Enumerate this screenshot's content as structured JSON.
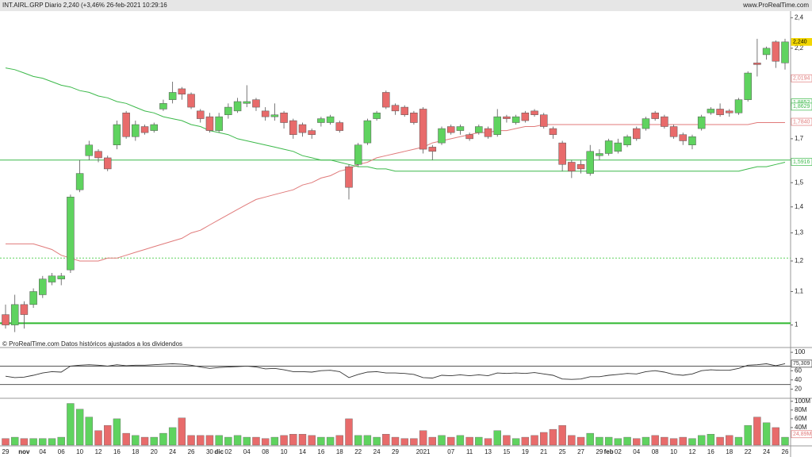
{
  "header": {
    "title": "INT.AIRL.GRP Diario 2,240 (+3,46% 26-feb-2021 10:29:16",
    "source": "www.ProRealTime.com"
  },
  "footer_note": "© ProRealTime.com  Datos históricos ajustados a los dividendos",
  "chart_data": [
    {
      "type": "candlestick",
      "categories": [
        "29",
        null,
        "nov",
        null,
        "04",
        null,
        "06",
        null,
        "10",
        null,
        "12",
        null,
        "16",
        null,
        "18",
        null,
        "20",
        null,
        "24",
        null,
        "26",
        null,
        "30",
        "dic",
        "02",
        null,
        "04",
        null,
        "08",
        null,
        "10",
        null,
        "14",
        null,
        "16",
        null,
        "18",
        null,
        "22",
        null,
        "24",
        null,
        "29",
        null,
        null,
        "2021",
        null,
        null,
        "07",
        null,
        "11",
        null,
        "13",
        null,
        "15",
        null,
        "19",
        null,
        "21",
        null,
        "25",
        null,
        "27",
        null,
        "29",
        "feb",
        "02",
        null,
        "04",
        null,
        "08",
        null,
        "10",
        null,
        "12",
        null,
        "16",
        null,
        "18",
        null,
        "22",
        null,
        "24",
        null,
        "26"
      ],
      "open": [
        1.03,
        1.0,
        1.06,
        1.06,
        1.09,
        1.13,
        1.14,
        1.17,
        1.47,
        1.62,
        1.64,
        1.61,
        1.67,
        1.83,
        1.71,
        1.76,
        1.74,
        1.85,
        1.9,
        1.96,
        1.93,
        1.84,
        1.81,
        1.74,
        1.82,
        1.84,
        1.88,
        1.9,
        1.84,
        1.81,
        1.83,
        1.79,
        1.77,
        1.74,
        1.78,
        1.78,
        1.78,
        1.57,
        1.58,
        1.68,
        1.8,
        1.94,
        1.87,
        1.86,
        1.83,
        1.85,
        1.66,
        1.68,
        1.76,
        1.74,
        1.72,
        1.73,
        1.75,
        1.72,
        1.81,
        1.78,
        1.83,
        1.84,
        1.82,
        1.75,
        1.68,
        1.59,
        1.58,
        1.54,
        1.62,
        1.63,
        1.64,
        1.67,
        1.75,
        1.75,
        1.83,
        1.81,
        1.76,
        1.72,
        1.67,
        1.75,
        1.83,
        1.85,
        1.84,
        1.83,
        1.9,
        2.11,
        2.16,
        2.24,
        2.11
      ],
      "high": [
        1.06,
        1.09,
        1.07,
        1.11,
        1.15,
        1.16,
        1.16,
        1.45,
        1.6,
        1.69,
        1.65,
        1.62,
        1.79,
        1.84,
        1.79,
        1.77,
        1.78,
        1.9,
        2.0,
        1.97,
        1.94,
        1.85,
        1.83,
        1.83,
        1.88,
        1.91,
        1.98,
        1.91,
        1.86,
        1.88,
        1.84,
        1.8,
        1.78,
        1.75,
        1.81,
        1.82,
        1.79,
        1.58,
        1.68,
        1.8,
        1.84,
        1.95,
        1.88,
        1.87,
        1.84,
        1.86,
        1.67,
        1.76,
        1.77,
        1.77,
        1.73,
        1.77,
        1.76,
        1.85,
        1.82,
        1.82,
        1.84,
        1.85,
        1.83,
        1.76,
        1.69,
        1.6,
        1.6,
        1.67,
        1.65,
        1.7,
        1.7,
        1.72,
        1.76,
        1.81,
        1.84,
        1.82,
        1.77,
        1.73,
        1.72,
        1.82,
        1.86,
        1.88,
        1.85,
        1.91,
        2.06,
        2.26,
        2.21,
        2.25,
        2.26
      ],
      "low": [
        0.99,
        0.98,
        0.99,
        1.05,
        1.08,
        1.12,
        1.12,
        1.16,
        1.46,
        1.6,
        1.59,
        1.55,
        1.65,
        1.7,
        1.69,
        1.72,
        1.73,
        1.84,
        1.88,
        1.9,
        1.85,
        1.78,
        1.73,
        1.73,
        1.8,
        1.83,
        1.86,
        1.84,
        1.79,
        1.79,
        1.75,
        1.7,
        1.71,
        1.7,
        1.76,
        1.77,
        1.73,
        1.43,
        1.57,
        1.67,
        1.79,
        1.85,
        1.82,
        1.81,
        1.77,
        1.63,
        1.6,
        1.67,
        1.72,
        1.72,
        1.69,
        1.72,
        1.7,
        1.71,
        1.78,
        1.77,
        1.78,
        1.81,
        1.75,
        1.7,
        1.55,
        1.52,
        1.54,
        1.53,
        1.6,
        1.62,
        1.63,
        1.66,
        1.69,
        1.74,
        1.79,
        1.75,
        1.7,
        1.67,
        1.65,
        1.74,
        1.82,
        1.81,
        1.81,
        1.82,
        1.89,
        2.03,
        2.13,
        2.08,
        2.07
      ],
      "close": [
        1.0,
        1.06,
        1.03,
        1.1,
        1.14,
        1.15,
        1.15,
        1.44,
        1.54,
        1.67,
        1.61,
        1.56,
        1.77,
        1.71,
        1.77,
        1.73,
        1.77,
        1.88,
        1.94,
        1.93,
        1.86,
        1.8,
        1.74,
        1.81,
        1.86,
        1.89,
        1.89,
        1.86,
        1.81,
        1.82,
        1.78,
        1.72,
        1.73,
        1.72,
        1.8,
        1.81,
        1.74,
        1.48,
        1.67,
        1.79,
        1.83,
        1.86,
        1.84,
        1.82,
        1.78,
        1.65,
        1.64,
        1.75,
        1.73,
        1.76,
        1.7,
        1.76,
        1.71,
        1.81,
        1.8,
        1.81,
        1.79,
        1.82,
        1.76,
        1.72,
        1.58,
        1.55,
        1.56,
        1.64,
        1.63,
        1.69,
        1.68,
        1.71,
        1.7,
        1.8,
        1.8,
        1.76,
        1.71,
        1.69,
        1.71,
        1.81,
        1.85,
        1.82,
        1.83,
        1.9,
        2.05,
        2.1,
        2.2,
        2.12,
        2.24
      ],
      "up_color": "#5fd35f",
      "down_color": "#e86b6b",
      "series": [
        {
          "color": "#e07a7a",
          "values": [
            1.26,
            1.26,
            1.26,
            1.26,
            1.25,
            1.24,
            1.22,
            1.21,
            1.2,
            1.2,
            1.2,
            1.21,
            1.21,
            1.22,
            1.23,
            1.24,
            1.25,
            1.26,
            1.27,
            1.28,
            1.3,
            1.31,
            1.33,
            1.35,
            1.37,
            1.39,
            1.41,
            1.43,
            1.44,
            1.45,
            1.46,
            1.47,
            1.49,
            1.5,
            1.52,
            1.53,
            1.55,
            1.56,
            1.58,
            1.59,
            1.61,
            1.62,
            1.63,
            1.64,
            1.65,
            1.66,
            1.68,
            1.69,
            1.7,
            1.71,
            1.72,
            1.73,
            1.73,
            1.74,
            1.74,
            1.75,
            1.76,
            1.76,
            1.77,
            1.77,
            1.77,
            1.77,
            1.77,
            1.77,
            1.77,
            1.77,
            1.77,
            1.77,
            1.77,
            1.77,
            1.77,
            1.77,
            1.77,
            1.77,
            1.77,
            1.77,
            1.77,
            1.77,
            1.77,
            1.77,
            1.77,
            1.78,
            1.78,
            1.78,
            1.78
          ]
        },
        {
          "color": "#3cb94a",
          "values": [
            2.08,
            2.07,
            2.05,
            2.03,
            2.02,
            2.0,
            1.98,
            1.97,
            1.95,
            1.94,
            1.92,
            1.91,
            1.89,
            1.88,
            1.86,
            1.84,
            1.83,
            1.81,
            1.8,
            1.79,
            1.77,
            1.76,
            1.74,
            1.73,
            1.72,
            1.7,
            1.69,
            1.68,
            1.67,
            1.66,
            1.65,
            1.64,
            1.62,
            1.61,
            1.6,
            1.6,
            1.59,
            1.58,
            1.57,
            1.57,
            1.56,
            1.56,
            1.55,
            1.55,
            1.55,
            1.55,
            1.55,
            1.55,
            1.55,
            1.55,
            1.55,
            1.55,
            1.55,
            1.55,
            1.55,
            1.55,
            1.55,
            1.55,
            1.55,
            1.55,
            1.55,
            1.55,
            1.55,
            1.55,
            1.55,
            1.55,
            1.55,
            1.55,
            1.55,
            1.55,
            1.55,
            1.55,
            1.55,
            1.55,
            1.55,
            1.55,
            1.55,
            1.55,
            1.55,
            1.55,
            1.56,
            1.57,
            1.57,
            1.58,
            1.59
          ]
        }
      ],
      "levels": [
        {
          "value": 1.005,
          "color": "#2fb82f",
          "style": "thick"
        },
        {
          "value": 1.6,
          "color": "#3cb94a",
          "style": "solid"
        },
        {
          "value": 1.21,
          "color": "#5fd35f",
          "style": "dashed"
        }
      ],
      "log_scale": true,
      "ylim": [
        0.94,
        2.44
      ],
      "yticks": [
        1,
        {
          "value": 1.1,
          "label": "1,1"
        },
        {
          "value": 1.2,
          "label": "1,2"
        },
        {
          "value": 1.3,
          "label": "1,3"
        },
        {
          "value": 1.4,
          "label": "1,4"
        },
        {
          "value": 1.5,
          "label": "1,5"
        },
        {
          "value": 1.7,
          "label": "1,7"
        },
        {
          "value": 2.2,
          "label": "2,2"
        },
        {
          "value": 2.4,
          "label": "2,4"
        }
      ],
      "tags": [
        {
          "value": 2.24,
          "label": "2,240",
          "color": "#f2d600",
          "style": "filled"
        },
        {
          "value": 2.0194,
          "label": "2,0194",
          "color": "#e07a7a",
          "style": "outline"
        },
        {
          "value": 1.8852,
          "label": "1,8852",
          "color": "#3cb94a",
          "style": "outline"
        },
        {
          "value": 1.8629,
          "label": "1,8629",
          "color": "#3cb94a",
          "style": "outline"
        },
        {
          "value": 1.784,
          "label": "1,7840",
          "color": "#e07a7a",
          "style": "outline"
        },
        {
          "value": 1.5916,
          "label": "1,5916",
          "color": "#3cb94a",
          "style": "outline"
        }
      ]
    },
    {
      "type": "line",
      "values": [
        48,
        45,
        46,
        50,
        55,
        58,
        57,
        70,
        72,
        73,
        72,
        70,
        73,
        71,
        72,
        72,
        73,
        74,
        75,
        74,
        72,
        68,
        65,
        67,
        68,
        69,
        70,
        68,
        64,
        65,
        62,
        58,
        58,
        57,
        60,
        61,
        58,
        45,
        52,
        57,
        58,
        55,
        55,
        54,
        52,
        45,
        44,
        50,
        49,
        51,
        49,
        51,
        49,
        55,
        54,
        55,
        54,
        56,
        53,
        50,
        42,
        41,
        42,
        47,
        47,
        50,
        52,
        54,
        53,
        58,
        60,
        57,
        52,
        50,
        53,
        60,
        62,
        61,
        61,
        65,
        72,
        73,
        75,
        71,
        75.309
      ],
      "color": "#333333",
      "levels": [
        {
          "value": 70,
          "color": "#555555",
          "style": "solid"
        },
        {
          "value": 30,
          "color": "#555555",
          "style": "solid"
        }
      ],
      "ylim": [
        0,
        107
      ],
      "yticks": [
        100,
        60,
        40,
        20
      ],
      "tags": [
        {
          "value": 75.309,
          "label": "75,309",
          "color": "#333333",
          "style": "outline"
        }
      ]
    },
    {
      "type": "bar",
      "values": [
        15000000,
        18000000,
        15000000,
        15000000,
        15000000,
        15000000,
        18000000,
        95000000,
        82000000,
        64000000,
        33000000,
        45000000,
        60000000,
        27000000,
        22000000,
        18000000,
        18000000,
        27000000,
        40000000,
        62000000,
        22000000,
        22000000,
        22000000,
        22000000,
        18000000,
        22000000,
        18000000,
        18000000,
        15000000,
        18000000,
        22000000,
        25000000,
        25000000,
        22000000,
        18000000,
        18000000,
        22000000,
        60000000,
        22000000,
        22000000,
        18000000,
        25000000,
        18000000,
        15000000,
        15000000,
        33000000,
        18000000,
        22000000,
        18000000,
        22000000,
        18000000,
        18000000,
        15000000,
        33000000,
        22000000,
        15000000,
        18000000,
        22000000,
        29000000,
        36000000,
        45000000,
        22000000,
        18000000,
        27000000,
        18000000,
        18000000,
        15000000,
        18000000,
        15000000,
        18000000,
        22000000,
        18000000,
        15000000,
        18000000,
        15000000,
        22000000,
        25000000,
        18000000,
        22000000,
        18000000,
        45000000,
        64000000,
        51000000,
        40000000,
        18000000
      ],
      "ylim": [
        0,
        105000000
      ],
      "yticks": [
        {
          "value": 100000000,
          "label": "100M"
        },
        {
          "value": 80000000,
          "label": "80M"
        },
        {
          "value": 60000000,
          "label": "60M"
        },
        {
          "value": 40000000,
          "label": "40M"
        }
      ],
      "tags": [
        {
          "value": 24890000,
          "label": "24,89M",
          "color": "#e07a7a",
          "style": "outline"
        }
      ]
    }
  ]
}
